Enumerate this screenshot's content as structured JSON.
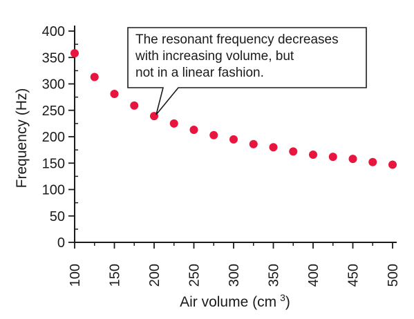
{
  "chart_data": {
    "type": "scatter",
    "xlabel": "Air volume (cm",
    "xlabel_superscript": "3",
    "xlabel_close": ")",
    "ylabel": "Frequency (Hz)",
    "xlim": [
      100,
      500
    ],
    "ylim": [
      0,
      400
    ],
    "x_ticks": [
      100,
      150,
      200,
      250,
      300,
      350,
      400,
      450,
      500
    ],
    "y_ticks": [
      0,
      50,
      100,
      150,
      200,
      250,
      300,
      350,
      400
    ],
    "grid": false,
    "marker_color": "#e8153f",
    "points": [
      {
        "x": 100,
        "y": 358
      },
      {
        "x": 125,
        "y": 313
      },
      {
        "x": 150,
        "y": 281
      },
      {
        "x": 175,
        "y": 259
      },
      {
        "x": 200,
        "y": 239
      },
      {
        "x": 225,
        "y": 225
      },
      {
        "x": 250,
        "y": 213
      },
      {
        "x": 275,
        "y": 203
      },
      {
        "x": 300,
        "y": 195
      },
      {
        "x": 325,
        "y": 186
      },
      {
        "x": 350,
        "y": 180
      },
      {
        "x": 375,
        "y": 172
      },
      {
        "x": 400,
        "y": 166
      },
      {
        "x": 425,
        "y": 162
      },
      {
        "x": 450,
        "y": 158
      },
      {
        "x": 475,
        "y": 152
      },
      {
        "x": 500,
        "y": 147
      }
    ],
    "annotation": {
      "lines": [
        "The resonant frequency decreases",
        "with increasing volume, but",
        "not in a linear fashion."
      ],
      "points_to": {
        "x": 200,
        "y": 239
      }
    }
  }
}
